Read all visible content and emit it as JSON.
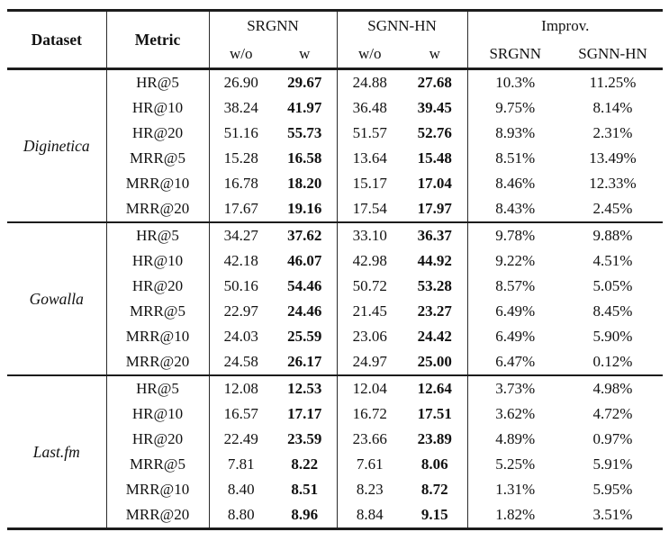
{
  "page": {
    "background": "#ffffff",
    "text_color": "#111111",
    "rule_color": "#1c1c1c"
  },
  "table": {
    "header": {
      "dataset": "Dataset",
      "metric": "Metric",
      "groups": [
        {
          "label": "SRGNN",
          "subs": [
            "w/o",
            "w"
          ]
        },
        {
          "label": "SGNN-HN",
          "subs": [
            "w/o",
            "w"
          ]
        },
        {
          "label": "Improv.",
          "subs": [
            "SRGNN",
            "SGNN-HN"
          ]
        }
      ]
    },
    "bold_value_columns": [
      1,
      3
    ],
    "groups": [
      {
        "dataset": "Diginetica",
        "rows": [
          {
            "metric": "HR@5",
            "values": [
              "26.90",
              "29.67",
              "24.88",
              "27.68",
              "10.3%",
              "11.25%"
            ]
          },
          {
            "metric": "HR@10",
            "values": [
              "38.24",
              "41.97",
              "36.48",
              "39.45",
              "9.75%",
              "8.14%"
            ]
          },
          {
            "metric": "HR@20",
            "values": [
              "51.16",
              "55.73",
              "51.57",
              "52.76",
              "8.93%",
              "2.31%"
            ]
          },
          {
            "metric": "MRR@5",
            "values": [
              "15.28",
              "16.58",
              "13.64",
              "15.48",
              "8.51%",
              "13.49%"
            ]
          },
          {
            "metric": "MRR@10",
            "values": [
              "16.78",
              "18.20",
              "15.17",
              "17.04",
              "8.46%",
              "12.33%"
            ]
          },
          {
            "metric": "MRR@20",
            "values": [
              "17.67",
              "19.16",
              "17.54",
              "17.97",
              "8.43%",
              "2.45%"
            ]
          }
        ]
      },
      {
        "dataset": "Gowalla",
        "rows": [
          {
            "metric": "HR@5",
            "values": [
              "34.27",
              "37.62",
              "33.10",
              "36.37",
              "9.78%",
              "9.88%"
            ]
          },
          {
            "metric": "HR@10",
            "values": [
              "42.18",
              "46.07",
              "42.98",
              "44.92",
              "9.22%",
              "4.51%"
            ]
          },
          {
            "metric": "HR@20",
            "values": [
              "50.16",
              "54.46",
              "50.72",
              "53.28",
              "8.57%",
              "5.05%"
            ]
          },
          {
            "metric": "MRR@5",
            "values": [
              "22.97",
              "24.46",
              "21.45",
              "23.27",
              "6.49%",
              "8.45%"
            ]
          },
          {
            "metric": "MRR@10",
            "values": [
              "24.03",
              "25.59",
              "23.06",
              "24.42",
              "6.49%",
              "5.90%"
            ]
          },
          {
            "metric": "MRR@20",
            "values": [
              "24.58",
              "26.17",
              "24.97",
              "25.00",
              "6.47%",
              "0.12%"
            ]
          }
        ]
      },
      {
        "dataset": "Last.fm",
        "rows": [
          {
            "metric": "HR@5",
            "values": [
              "12.08",
              "12.53",
              "12.04",
              "12.64",
              "3.73%",
              "4.98%"
            ]
          },
          {
            "metric": "HR@10",
            "values": [
              "16.57",
              "17.17",
              "16.72",
              "17.51",
              "3.62%",
              "4.72%"
            ]
          },
          {
            "metric": "HR@20",
            "values": [
              "22.49",
              "23.59",
              "23.66",
              "23.89",
              "4.89%",
              "0.97%"
            ]
          },
          {
            "metric": "MRR@5",
            "values": [
              "7.81",
              "8.22",
              "7.61",
              "8.06",
              "5.25%",
              "5.91%"
            ]
          },
          {
            "metric": "MRR@10",
            "values": [
              "8.40",
              "8.51",
              "8.23",
              "8.72",
              "1.31%",
              "5.95%"
            ]
          },
          {
            "metric": "MRR@20",
            "values": [
              "8.80",
              "8.96",
              "8.84",
              "9.15",
              "1.82%",
              "3.51%"
            ]
          }
        ]
      }
    ]
  }
}
